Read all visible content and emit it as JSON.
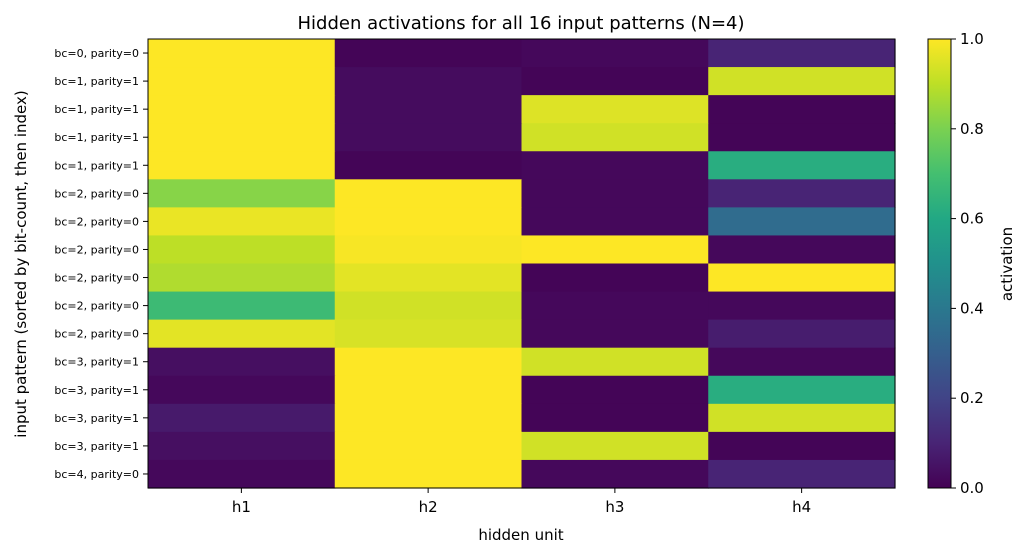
{
  "chart_data": {
    "type": "heatmap",
    "title": "Hidden activations for all 16 input patterns (N=4)",
    "xlabel": "hidden unit",
    "ylabel": "input pattern  (sorted by bit-count, then index)",
    "x_categories": [
      "h1",
      "h2",
      "h3",
      "h4"
    ],
    "y_categories": [
      "bc=0, parity=0",
      "bc=1, parity=1",
      "bc=1, parity=1",
      "bc=1, parity=1",
      "bc=1, parity=1",
      "bc=2, parity=0",
      "bc=2, parity=0",
      "bc=2, parity=0",
      "bc=2, parity=0",
      "bc=2, parity=0",
      "bc=2, parity=0",
      "bc=3, parity=1",
      "bc=3, parity=1",
      "bc=3, parity=1",
      "bc=3, parity=1",
      "bc=4, parity=0"
    ],
    "values": [
      [
        1.0,
        0.01,
        0.02,
        0.1
      ],
      [
        1.0,
        0.03,
        0.01,
        0.93
      ],
      [
        1.0,
        0.03,
        0.95,
        0.01
      ],
      [
        1.0,
        0.03,
        0.93,
        0.01
      ],
      [
        1.0,
        0.01,
        0.02,
        0.62
      ],
      [
        0.82,
        1.0,
        0.02,
        0.1
      ],
      [
        0.97,
        1.0,
        0.02,
        0.35
      ],
      [
        0.9,
        0.99,
        1.0,
        0.02
      ],
      [
        0.88,
        0.96,
        0.01,
        1.0
      ],
      [
        0.68,
        0.93,
        0.02,
        0.02
      ],
      [
        0.96,
        0.94,
        0.02,
        0.08
      ],
      [
        0.04,
        1.0,
        0.93,
        0.02
      ],
      [
        0.02,
        1.0,
        0.01,
        0.62
      ],
      [
        0.07,
        1.0,
        0.01,
        0.93
      ],
      [
        0.04,
        1.0,
        0.93,
        0.01
      ],
      [
        0.02,
        1.0,
        0.02,
        0.1
      ]
    ],
    "colormap": "viridis",
    "vmin": 0.0,
    "vmax": 1.0,
    "colorbar": {
      "label": "activation",
      "ticks": [
        "0.0",
        "0.2",
        "0.4",
        "0.6",
        "0.8",
        "1.0"
      ],
      "tick_values": [
        0.0,
        0.2,
        0.4,
        0.6,
        0.8,
        1.0
      ]
    },
    "grid": false
  }
}
